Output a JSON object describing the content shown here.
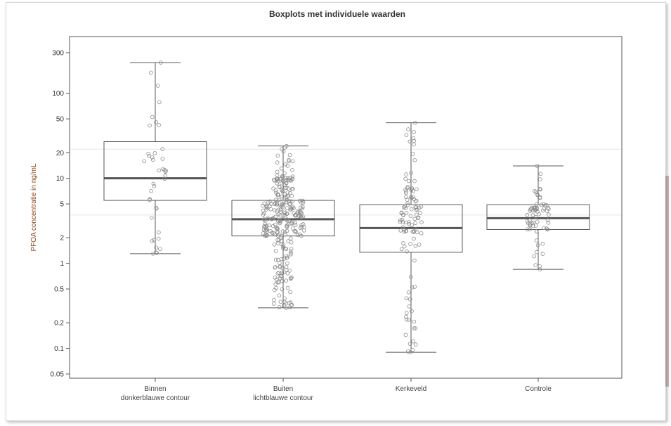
{
  "chart_data": {
    "type": "box",
    "title": "Boxplots met individuele waarden",
    "ylabel": "PFOA concentratie in ng/mL",
    "xlabel": "",
    "yscale": "log",
    "ylim": [
      0.05,
      300
    ],
    "yticks": [
      0.05,
      0.1,
      0.2,
      0.5,
      1,
      2,
      5,
      10,
      20,
      50,
      100,
      300
    ],
    "ytick_labels": [
      "0.05",
      "0.1",
      "0.2",
      "0.5",
      "1",
      "2",
      "5",
      "10",
      "20",
      "50",
      "100",
      "300"
    ],
    "reference_lines": [
      22,
      3.7
    ],
    "grid": false,
    "legend": "none",
    "categories": [
      {
        "label": [
          "Binnen",
          "donkerblauwe contour"
        ],
        "min": 1.3,
        "q1": 5.5,
        "median": 10,
        "q3": 27,
        "max": 230
      },
      {
        "label": [
          "Buiten",
          "lichtblauwe contour"
        ],
        "min": 0.3,
        "q1": 2.1,
        "median": 3.3,
        "q3": 5.5,
        "max": 24
      },
      {
        "label": [
          "Kerkeveld"
        ],
        "min": 0.09,
        "q1": 1.35,
        "median": 2.6,
        "q3": 4.9,
        "max": 45
      },
      {
        "label": [
          "Controle"
        ],
        "min": 0.85,
        "q1": 2.5,
        "median": 3.4,
        "q3": 4.9,
        "max": 14
      }
    ],
    "colors": {
      "box": "#5a5a5a",
      "median": "#555555",
      "points": "#8a8a8a",
      "ylabel": "#8b4513",
      "refline": "#f0e4e4"
    }
  }
}
